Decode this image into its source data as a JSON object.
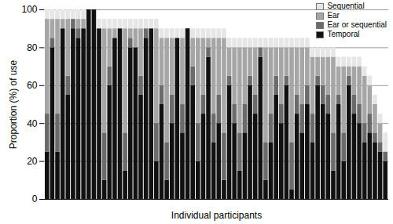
{
  "chart_data": {
    "type": "bar",
    "stacked": true,
    "grid": true,
    "legend": "top-right",
    "tick_labels": "y",
    "x_label": "Individual participants",
    "y_label": "Proportion (%) of use",
    "ylim": [
      0,
      100
    ],
    "yticks": [
      0,
      20,
      40,
      60,
      80,
      100
    ],
    "categories": [
      null,
      null,
      null,
      null,
      null,
      null,
      null,
      null,
      null,
      null,
      null,
      null,
      null,
      null,
      null,
      null,
      null,
      null,
      null,
      null,
      null,
      null,
      null,
      null,
      null,
      null,
      null,
      null,
      null,
      null,
      null,
      null,
      null,
      null,
      null,
      null,
      null,
      null,
      null,
      null,
      null,
      null,
      null,
      null,
      null,
      null,
      null,
      null,
      null,
      null,
      null,
      null,
      null,
      null,
      null,
      null,
      null,
      null,
      null,
      null,
      null,
      null,
      null,
      null,
      null,
      null
    ],
    "series": [
      {
        "name": "Sequential",
        "color": "#e6e6e6",
        "values": [
          5,
          5,
          5,
          5,
          5,
          5,
          5,
          5,
          0,
          0,
          5,
          5,
          5,
          5,
          5,
          5,
          5,
          5,
          5,
          5,
          5,
          5,
          5,
          5,
          5,
          5,
          5,
          0,
          5,
          5,
          5,
          5,
          5,
          5,
          5,
          5,
          5,
          5,
          5,
          5,
          5,
          5,
          5,
          5,
          5,
          5,
          5,
          5,
          5,
          5,
          5,
          5,
          5,
          5,
          5,
          5,
          5,
          5,
          5,
          5,
          5,
          5,
          5,
          5,
          5,
          10
        ]
      },
      {
        "name": "Ear",
        "color": "#a6a6a6",
        "values": [
          50,
          10,
          50,
          5,
          30,
          0,
          5,
          5,
          0,
          0,
          0,
          55,
          20,
          5,
          0,
          55,
          5,
          10,
          25,
          0,
          0,
          50,
          25,
          55,
          30,
          0,
          35,
          0,
          15,
          45,
          30,
          5,
          40,
          30,
          50,
          15,
          30,
          45,
          30,
          15,
          25,
          0,
          50,
          35,
          15,
          30,
          15,
          50,
          25,
          30,
          20,
          30,
          10,
          15,
          20,
          40,
          15,
          35,
          5,
          15,
          20,
          25,
          15,
          15,
          10,
          0
        ]
      },
      {
        "name": "Ear or sequential",
        "color": "#6b6b6b",
        "values": [
          20,
          5,
          20,
          0,
          10,
          5,
          5,
          0,
          0,
          0,
          0,
          25,
          10,
          0,
          0,
          20,
          5,
          0,
          10,
          5,
          0,
          20,
          10,
          20,
          15,
          0,
          15,
          0,
          10,
          20,
          10,
          5,
          15,
          15,
          25,
          5,
          10,
          20,
          15,
          5,
          10,
          5,
          20,
          15,
          10,
          10,
          5,
          25,
          10,
          15,
          10,
          15,
          5,
          10,
          10,
          20,
          5,
          15,
          5,
          10,
          10,
          10,
          10,
          5,
          5,
          5
        ]
      },
      {
        "name": "Temporal",
        "color": "#111111",
        "values": [
          25,
          80,
          25,
          90,
          55,
          90,
          85,
          90,
          100,
          100,
          90,
          10,
          60,
          85,
          90,
          15,
          80,
          80,
          55,
          85,
          90,
          20,
          50,
          10,
          40,
          85,
          35,
          90,
          60,
          20,
          45,
          75,
          30,
          40,
          10,
          60,
          40,
          15,
          35,
          60,
          45,
          75,
          10,
          30,
          55,
          40,
          60,
          5,
          45,
          35,
          50,
          30,
          60,
          50,
          45,
          15,
          50,
          20,
          60,
          45,
          40,
          30,
          35,
          30,
          25,
          20
        ]
      }
    ]
  }
}
